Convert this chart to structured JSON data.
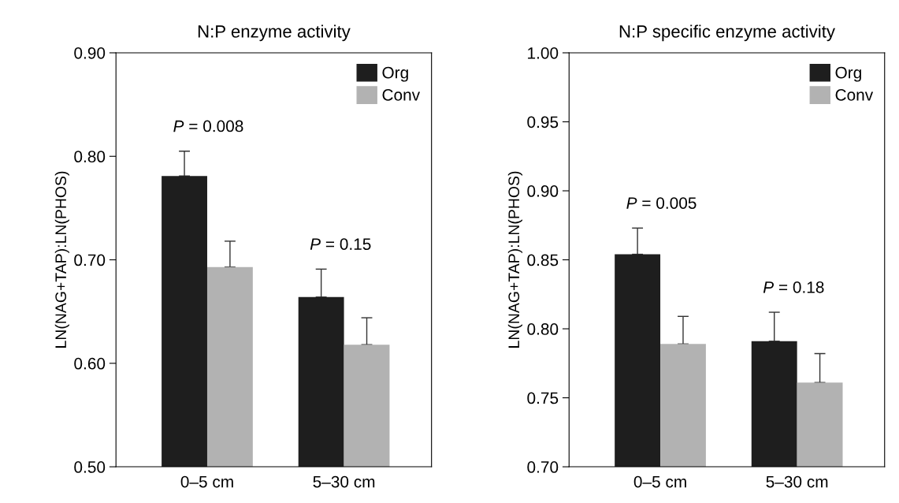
{
  "chart_data": [
    {
      "type": "bar",
      "title": "N:P enzyme activity",
      "ylabel": "LN(NAG+TAP):LN(PHOS)",
      "categories": [
        "0–5 cm",
        "5–30 cm"
      ],
      "series": [
        {
          "name": "Org",
          "color": "#1e1e1e",
          "values": [
            0.781,
            0.664
          ],
          "errors": [
            [
              0.781,
              0.805
            ],
            [
              0.664,
              0.691
            ]
          ]
        },
        {
          "name": "Conv",
          "color": "#b2b2b2",
          "values": [
            0.693,
            0.618
          ],
          "errors": [
            [
              0.693,
              0.718
            ],
            [
              0.618,
              0.644
            ]
          ]
        }
      ],
      "ylim": [
        0.5,
        0.9
      ],
      "yticks": [
        {
          "value": 0.5,
          "label": "0.50"
        },
        {
          "value": 0.6,
          "label": "0.60"
        },
        {
          "value": 0.7,
          "label": "0.70"
        },
        {
          "value": 0.8,
          "label": "0.80"
        },
        {
          "value": 0.9,
          "label": "0.90"
        }
      ],
      "annotations": [
        "P = 0.008",
        "P = 0.15"
      ],
      "legend": "top right",
      "grid": false
    },
    {
      "type": "bar",
      "title": "N:P specific enzyme activity",
      "ylabel": "LN(NAG+TAP):LN(PHOS)",
      "categories": [
        "0–5 cm",
        "5–30 cm"
      ],
      "series": [
        {
          "name": "Org",
          "color": "#1e1e1e",
          "values": [
            0.854,
            0.791
          ],
          "errors": [
            [
              0.854,
              0.873
            ],
            [
              0.791,
              0.812
            ]
          ]
        },
        {
          "name": "Conv",
          "color": "#b2b2b2",
          "values": [
            0.789,
            0.761
          ],
          "errors": [
            [
              0.789,
              0.809
            ],
            [
              0.761,
              0.782
            ]
          ]
        }
      ],
      "ylim": [
        0.7,
        1.0
      ],
      "yticks": [
        {
          "value": 0.7,
          "label": "0.70"
        },
        {
          "value": 0.75,
          "label": "0.75"
        },
        {
          "value": 0.8,
          "label": "0.80"
        },
        {
          "value": 0.85,
          "label": "0.85"
        },
        {
          "value": 0.9,
          "label": "0.90"
        },
        {
          "value": 0.95,
          "label": "0.95"
        },
        {
          "value": 1.0,
          "label": "1.00"
        }
      ],
      "annotations": [
        "P = 0.005",
        "P = 0.18"
      ],
      "legend": "top right",
      "grid": false
    }
  ]
}
